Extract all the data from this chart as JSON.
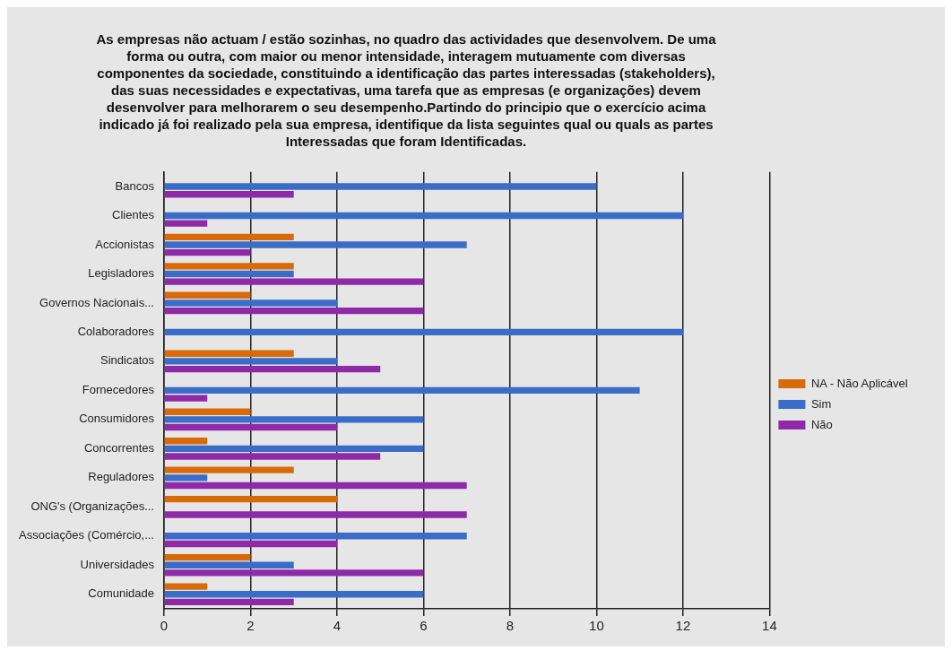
{
  "chart_data": {
    "type": "bar",
    "orientation": "horizontal",
    "title": "As empresas não actuam / estão sozinhas, no quadro das actividades que desenvolvem. De uma forma ou outra, com maior ou menor intensidade, interagem mutuamente com diversas componentes da sociedade, constituindo a identificação das partes interessadas (stakeholders), das suas necessidades e expectativas, uma tarefa que as empresas (e organizações) devem desenvolver para melhorarem o seu desempenho.Partindo do principio que o exercício acima indicado já foi realizado pela sua empresa, identifique da lista seguintes qual ou quals as partes Interessadas que foram Identificadas.",
    "categories": [
      "Bancos",
      "Clientes",
      "Accionistas",
      "Legisladores",
      "Governos Nacionais...",
      "Colaboradores",
      "Sindicatos",
      "Fornecedores",
      "Consumidores",
      "Concorrentes",
      "Reguladores",
      "ONG's (Organizações...",
      "Associações (Comércio,...",
      "Universidades",
      "Comunidade"
    ],
    "series": [
      {
        "name": "NA - Não Aplicável",
        "color": "#d86a0a",
        "values": [
          null,
          null,
          3,
          3,
          2,
          null,
          3,
          null,
          2,
          1,
          3,
          4,
          null,
          2,
          1
        ]
      },
      {
        "name": "Sim",
        "color": "#3a6cc8",
        "values": [
          10,
          12,
          7,
          3,
          4,
          12,
          4,
          11,
          6,
          6,
          1,
          null,
          7,
          3,
          6
        ]
      },
      {
        "name": "Não",
        "color": "#8e2aa8",
        "values": [
          3,
          1,
          2,
          6,
          6,
          null,
          5,
          1,
          4,
          5,
          7,
          7,
          4,
          6,
          3
        ]
      }
    ],
    "xlim": [
      0,
      14
    ],
    "xticks": [
      0,
      2,
      4,
      6,
      8,
      10,
      12,
      14
    ],
    "grid": "x",
    "legend": "right"
  }
}
